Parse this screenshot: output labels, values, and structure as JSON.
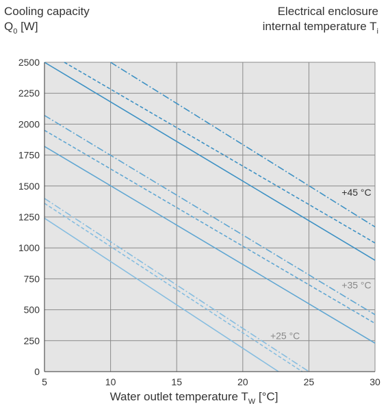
{
  "header": {
    "y_title_line1": "Cooling capacity",
    "y_title_q": "Q",
    "y_title_q_sub": "0",
    "y_title_unit": " [W]",
    "right_title_line1": "Electrical enclosure",
    "right_title_line2": "internal temperature T",
    "right_title_sub": "i"
  },
  "x_title": {
    "text": "Water outlet temperature T",
    "sub": "W",
    "unit": " [°C]"
  },
  "chart_data": {
    "type": "line",
    "title": "",
    "xlabel": "Water outlet temperature T_W [°C]",
    "ylabel": "Cooling capacity Q_0 [W]",
    "xlim": [
      5,
      30
    ],
    "ylim": [
      0,
      2500
    ],
    "xticks": [
      5,
      10,
      15,
      20,
      25,
      30
    ],
    "yticks": [
      0,
      250,
      500,
      750,
      1000,
      1250,
      1500,
      1750,
      2000,
      2250,
      2500
    ],
    "grid": true,
    "colors": {
      "background": "#e5e5e5",
      "grid": "#8a8a8a",
      "t45": "#3d91c4",
      "t35": "#5fa6d2",
      "t25": "#86bde0",
      "label45": "#333333",
      "label_other": "#888888"
    },
    "series": [
      {
        "group": "+45 °C",
        "style": "solid",
        "x": [
          5,
          30
        ],
        "values": [
          2500,
          900
        ]
      },
      {
        "group": "+45 °C",
        "style": "dashed",
        "x": [
          6.5,
          30
        ],
        "values": [
          2500,
          1040
        ]
      },
      {
        "group": "+45 °C",
        "style": "dashdot",
        "x": [
          10,
          30
        ],
        "values": [
          2500,
          1170
        ]
      },
      {
        "group": "+35 °C",
        "style": "solid",
        "x": [
          5,
          30
        ],
        "values": [
          1820,
          230
        ]
      },
      {
        "group": "+35 °C",
        "style": "dashed",
        "x": [
          5,
          30
        ],
        "values": [
          1950,
          390
        ]
      },
      {
        "group": "+35 °C",
        "style": "dashdot",
        "x": [
          5,
          30
        ],
        "values": [
          2070,
          460
        ]
      },
      {
        "group": "+25 °C",
        "style": "solid",
        "x": [
          5,
          22.7
        ],
        "values": [
          1240,
          0
        ]
      },
      {
        "group": "+25 °C",
        "style": "dashed",
        "x": [
          5,
          24.5
        ],
        "values": [
          1360,
          0
        ]
      },
      {
        "group": "+25 °C",
        "style": "dashdot",
        "x": [
          5,
          25
        ],
        "values": [
          1400,
          0
        ]
      }
    ],
    "annotations": [
      {
        "text": "+45 °C",
        "x": 28.6,
        "y": 1450,
        "color_key": "label45"
      },
      {
        "text": "+35 °C",
        "x": 28.6,
        "y": 700,
        "color_key": "label_other"
      },
      {
        "text": "+25 °C",
        "x": 23.2,
        "y": 290,
        "color_key": "label_other"
      }
    ]
  }
}
